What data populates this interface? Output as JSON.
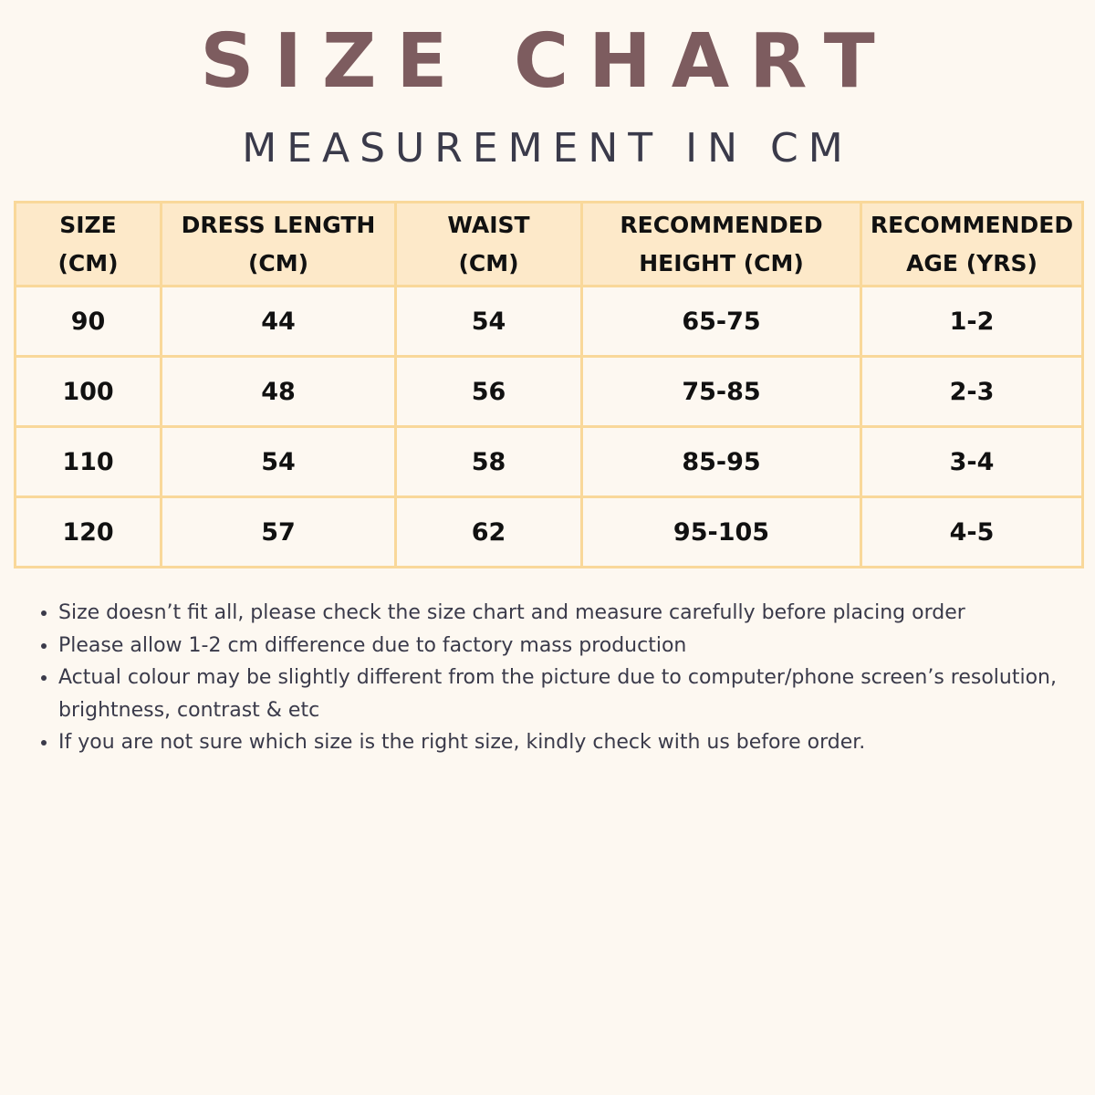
{
  "header": {
    "title": "SIZE CHART",
    "subtitle": "MEASUREMENT IN CM"
  },
  "table": {
    "header": [
      [
        "SIZE",
        "(CM)"
      ],
      [
        "DRESS LENGTH",
        "(CM)"
      ],
      [
        "WAIST",
        "(CM)"
      ],
      [
        "RECOMMENDED",
        "HEIGHT (CM)"
      ],
      [
        "RECOMMENDED",
        "AGE (YRS)"
      ]
    ],
    "rows": [
      [
        "90",
        "44",
        "54",
        "65-75",
        "1-2"
      ],
      [
        "100",
        "48",
        "56",
        "75-85",
        "2-3"
      ],
      [
        "110",
        "54",
        "58",
        "85-95",
        "3-4"
      ],
      [
        "120",
        "57",
        "62",
        "95-105",
        "4-5"
      ]
    ]
  },
  "notes": [
    "Size doesn’t fit all, please check the size chart and measure carefully before placing order",
    "Please allow 1-2 cm difference due to factory mass production",
    "Actual colour may be slightly different from the picture due to computer/phone screen’s resolution, brightness, contrast & etc",
    "If you are not sure which size is the right size, kindly check with us before order."
  ]
}
